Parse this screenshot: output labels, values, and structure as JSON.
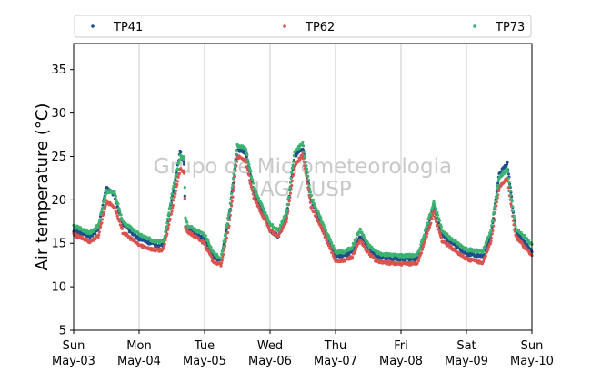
{
  "chart_data": {
    "type": "scatter",
    "ylabel": "Air temperature (°C)",
    "xlabel": "",
    "ylim": [
      5,
      38
    ],
    "xlim_days": [
      0,
      7
    ],
    "yticks": [
      5,
      10,
      15,
      20,
      25,
      30,
      35
    ],
    "x_ticks": [
      {
        "day": "Sun",
        "date": "May-03"
      },
      {
        "day": "Mon",
        "date": "May-04"
      },
      {
        "day": "Tue",
        "date": "May-05"
      },
      {
        "day": "Wed",
        "date": "May-06"
      },
      {
        "day": "Thu",
        "date": "May-07"
      },
      {
        "day": "Fri",
        "date": "May-08"
      },
      {
        "day": "Sat",
        "date": "May-09"
      },
      {
        "day": "Sun",
        "date": "May-10"
      }
    ],
    "grid": "vertical",
    "legend_position": "top",
    "watermark": [
      "Grupo de Micrometeorologia",
      "IAG / USP"
    ],
    "series": [
      {
        "name": "TP41",
        "color": "#1f4e8c",
        "x": [
          "May-03 00:00",
          "May-03 06:00",
          "May-03 09:00",
          "May-03 12:00",
          "May-03 15:00",
          "May-03 18:00",
          "May-04 00:00",
          "May-04 06:00",
          "May-04 09:00",
          "May-04 12:00",
          "May-04 15:00",
          "May-04 16:30",
          "May-04 17:00",
          "May-04 18:00",
          "May-05 00:00",
          "May-05 03:00",
          "May-05 06:00",
          "May-05 09:00",
          "May-05 12:00",
          "May-05 15:00",
          "May-05 18:00",
          "May-06 00:00",
          "May-06 03:00",
          "May-06 06:00",
          "May-06 09:00",
          "May-06 12:00",
          "May-06 15:00",
          "May-06 18:00",
          "May-07 00:00",
          "May-07 03:00",
          "May-07 06:00",
          "May-07 09:00",
          "May-07 12:00",
          "May-07 15:00",
          "May-07 18:00",
          "May-08 00:00",
          "May-08 06:00",
          "May-08 09:00",
          "May-08 12:00",
          "May-08 15:00",
          "May-08 18:00",
          "May-09 00:00",
          "May-09 06:00",
          "May-09 09:00",
          "May-09 12:00",
          "May-09 15:00",
          "May-09 18:00",
          "May-10 00:00"
        ],
        "y": [
          16.5,
          15.8,
          16.5,
          21.5,
          20.5,
          17.2,
          15.5,
          14.8,
          14.8,
          20.0,
          25.5,
          24.2,
          17.0,
          16.5,
          15.5,
          13.5,
          13.0,
          18.0,
          25.8,
          25.5,
          21.0,
          16.5,
          15.8,
          18.0,
          25.0,
          26.0,
          20.0,
          17.8,
          13.5,
          13.5,
          14.0,
          15.8,
          14.5,
          13.5,
          13.3,
          13.2,
          13.2,
          16.0,
          19.5,
          16.0,
          15.2,
          13.8,
          13.5,
          16.0,
          23.0,
          24.2,
          16.5,
          14.0
        ]
      },
      {
        "name": "TP62",
        "color": "#d9534f",
        "x": [
          "May-03 00:00",
          "May-03 06:00",
          "May-03 09:00",
          "May-03 12:00",
          "May-03 15:00",
          "May-03 18:00",
          "May-04 00:00",
          "May-04 06:00",
          "May-04 09:00",
          "May-04 12:00",
          "May-04 15:00",
          "May-04 16:30",
          "May-04 17:00",
          "May-04 18:00",
          "May-05 00:00",
          "May-05 03:00",
          "May-05 06:00",
          "May-05 09:00",
          "May-05 12:00",
          "May-05 15:00",
          "May-05 18:00",
          "May-06 00:00",
          "May-06 03:00",
          "May-06 06:00",
          "May-06 09:00",
          "May-06 12:00",
          "May-06 15:00",
          "May-06 18:00",
          "May-07 00:00",
          "May-07 03:00",
          "May-07 06:00",
          "May-07 09:00",
          "May-07 12:00",
          "May-07 15:00",
          "May-07 18:00",
          "May-08 00:00",
          "May-08 06:00",
          "May-08 09:00",
          "May-08 12:00",
          "May-08 15:00",
          "May-08 18:00",
          "May-09 00:00",
          "May-09 06:00",
          "May-09 09:00",
          "May-09 12:00",
          "May-09 15:00",
          "May-09 18:00",
          "May-10 00:00"
        ],
        "y": [
          16.0,
          15.2,
          15.8,
          19.8,
          19.2,
          16.3,
          14.8,
          14.2,
          14.3,
          18.8,
          23.5,
          23.2,
          16.8,
          16.3,
          15.0,
          13.0,
          12.5,
          17.0,
          25.0,
          24.5,
          20.3,
          16.5,
          15.8,
          17.5,
          24.0,
          25.2,
          19.3,
          17.3,
          13.0,
          13.0,
          13.4,
          15.3,
          13.9,
          13.0,
          12.8,
          12.6,
          12.7,
          15.4,
          18.6,
          15.3,
          14.6,
          13.2,
          12.8,
          15.2,
          21.5,
          22.5,
          15.8,
          13.6
        ]
      },
      {
        "name": "TP73",
        "color": "#3cb371",
        "x": [
          "May-03 00:00",
          "May-03 06:00",
          "May-03 09:00",
          "May-03 12:00",
          "May-03 15:00",
          "May-03 18:00",
          "May-04 00:00",
          "May-04 06:00",
          "May-04 09:00",
          "May-04 12:00",
          "May-04 15:00",
          "May-04 16:30",
          "May-04 17:00",
          "May-04 18:00",
          "May-05 00:00",
          "May-05 03:00",
          "May-05 06:00",
          "May-05 09:00",
          "May-05 12:00",
          "May-05 15:00",
          "May-05 18:00",
          "May-06 00:00",
          "May-06 03:00",
          "May-06 06:00",
          "May-06 09:00",
          "May-06 12:00",
          "May-06 15:00",
          "May-06 18:00",
          "May-07 00:00",
          "May-07 03:00",
          "May-07 06:00",
          "May-07 09:00",
          "May-07 12:00",
          "May-07 15:00",
          "May-07 18:00",
          "May-08 00:00",
          "May-08 06:00",
          "May-08 09:00",
          "May-08 12:00",
          "May-08 15:00",
          "May-08 18:00",
          "May-09 00:00",
          "May-09 06:00",
          "May-09 09:00",
          "May-09 12:00",
          "May-09 15:00",
          "May-09 18:00",
          "May-10 00:00"
        ],
        "y": [
          17.0,
          16.2,
          17.0,
          21.0,
          20.8,
          17.5,
          16.0,
          15.2,
          15.2,
          20.5,
          25.0,
          24.8,
          17.8,
          17.0,
          16.0,
          14.0,
          13.2,
          18.5,
          26.2,
          26.0,
          21.5,
          17.2,
          16.5,
          18.5,
          25.5,
          26.5,
          20.5,
          18.2,
          14.0,
          14.0,
          14.5,
          16.6,
          14.8,
          14.0,
          13.7,
          13.6,
          13.6,
          16.5,
          19.8,
          16.5,
          15.6,
          14.3,
          14.0,
          16.5,
          22.5,
          23.6,
          16.8,
          14.9
        ]
      }
    ]
  }
}
